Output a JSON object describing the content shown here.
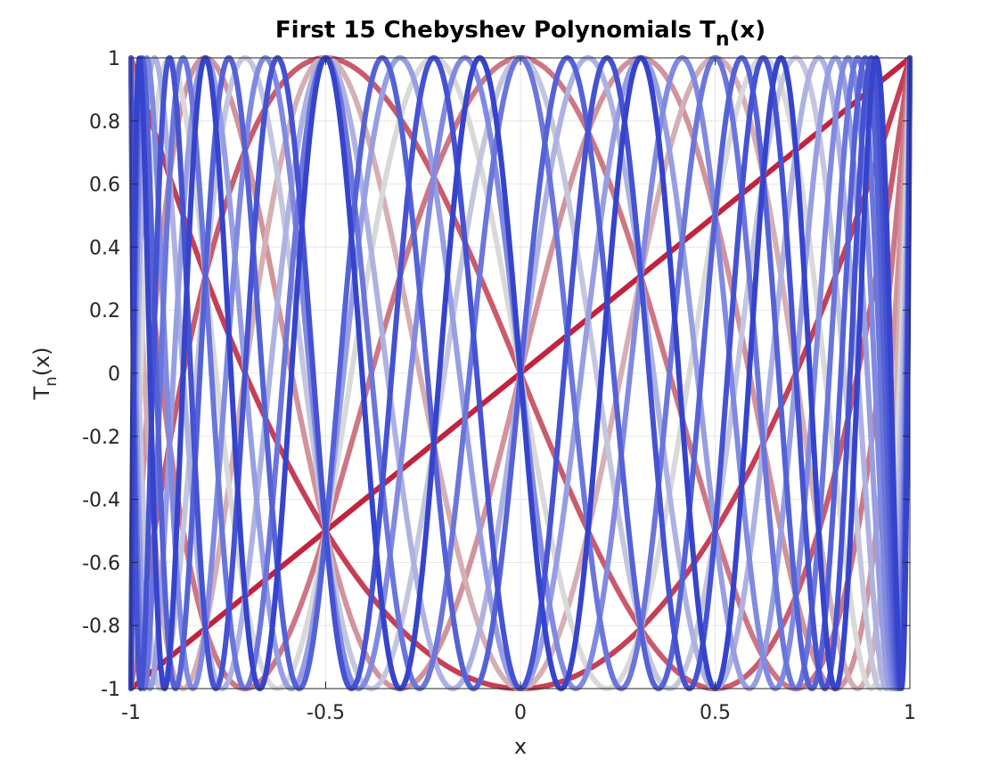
{
  "chart_data": {
    "type": "line",
    "title": {
      "main": "First 15 Chebyshev Polynomials T",
      "sub": "n",
      "tail": "(x)"
    },
    "xlabel": "x",
    "ylabel": {
      "main": "T",
      "sub": "n",
      "tail": "(x)"
    },
    "xlim": [
      -1,
      1
    ],
    "ylim": [
      -1,
      1
    ],
    "xticks": [
      -1,
      -0.5,
      0,
      0.5,
      1
    ],
    "xtick_labels": [
      "-1",
      "-0.5",
      "0",
      "0.5",
      "1"
    ],
    "yticks": [
      -1,
      -0.8,
      -0.6,
      -0.4,
      -0.2,
      0,
      0.2,
      0.4,
      0.6,
      0.8,
      1
    ],
    "ytick_labels": [
      "-1",
      "-0.8",
      "-0.6",
      "-0.4",
      "-0.2",
      "0",
      "0.2",
      "0.4",
      "0.6",
      "0.8",
      "1"
    ],
    "grid": true,
    "legend": "none",
    "series": [
      {
        "n": 1,
        "color": "#c1233f"
      },
      {
        "n": 2,
        "color": "#c53f56"
      },
      {
        "n": 3,
        "color": "#c95b6d"
      },
      {
        "n": 4,
        "color": "#cd7785"
      },
      {
        "n": 5,
        "color": "#d1939c"
      },
      {
        "n": 6,
        "color": "#d5afb4"
      },
      {
        "n": 7,
        "color": "#d9d9d9"
      },
      {
        "n": 8,
        "color": "#c3c6de"
      },
      {
        "n": 9,
        "color": "#adb2e2"
      },
      {
        "n": 10,
        "color": "#979ee2"
      },
      {
        "n": 11,
        "color": "#818ae0"
      },
      {
        "n": 12,
        "color": "#6b76dc"
      },
      {
        "n": 13,
        "color": "#5562d7"
      },
      {
        "n": 14,
        "color": "#4552d2"
      },
      {
        "n": 15,
        "color": "#3644cc"
      }
    ]
  }
}
